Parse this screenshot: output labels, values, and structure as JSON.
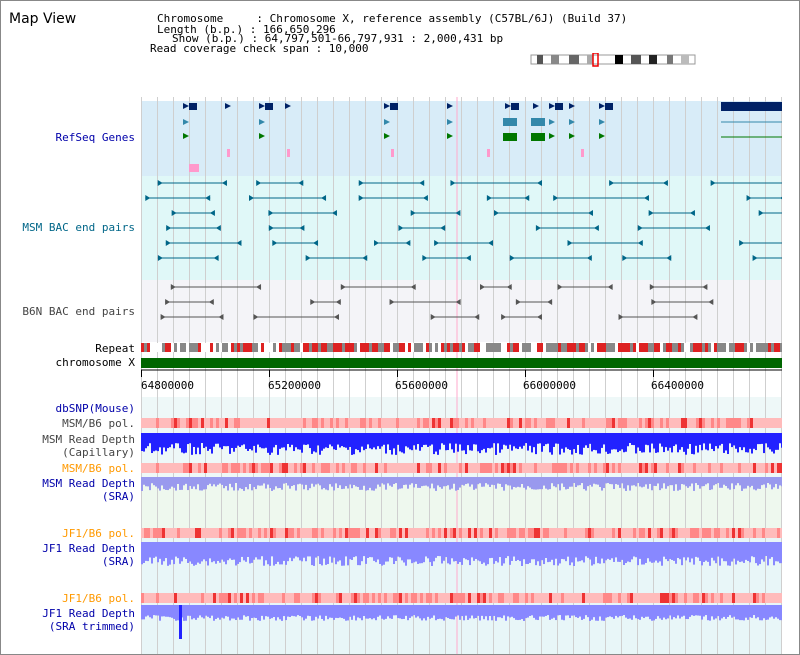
{
  "title": "Map View",
  "header": {
    "chromosome": "Chromosome     : Chromosome X, reference assembly (C57BL/6J) (Build 37)",
    "length": "Length (b.p.) : 166,650,296",
    "show": "Show (b.p.) : 64,797,501-66,797,931 : 2,000,431 bp",
    "coverage": "Read coverage check span : 10,000"
  },
  "tracks": {
    "refseq": "RefSeq Genes",
    "msm_bac": "MSM BAC end pairs",
    "b6n_bac": "B6N BAC end pairs",
    "repeat": "Repeat",
    "chromosome": "chromosome X",
    "dbsnp": "dbSNP(Mouse)",
    "msm_pol": "MSM/B6 pol.",
    "msm_depth_cap_1": "MSM Read Depth",
    "msm_depth_cap_2": "(Capillary)",
    "msm_pol_2": "MSM/B6 pol.",
    "msm_depth_sra_1": "MSM Read Depth",
    "msm_depth_sra_2": "(SRA)",
    "jf1_pol": "JF1/B6 pol.",
    "jf1_depth_1": "JF1 Read Depth",
    "jf1_depth_2": "(SRA)",
    "jf1_pol_2": "JF1/B6 pol.",
    "jf1_trim_1": "JF1 Read Depth",
    "jf1_trim_2": "(SRA trimmed)"
  },
  "axis": {
    "ticks": [
      "64800000",
      "65200000",
      "65600000",
      "66000000",
      "66400000"
    ]
  },
  "colors": {
    "refseq_bg": "#d8ecf8",
    "msm_bac_bg": "#e0f8f8",
    "b6n_bac_bg": "#f4f4f8",
    "gene_dark": "#002266",
    "gene_mid": "#3388aa",
    "gene_green": "#007700",
    "chromosome": "#006600",
    "repeat": "#dd2222",
    "depth_blue": "#2222ff",
    "depth_light": "#8888ff",
    "pol_pink": "#ff9999"
  }
}
